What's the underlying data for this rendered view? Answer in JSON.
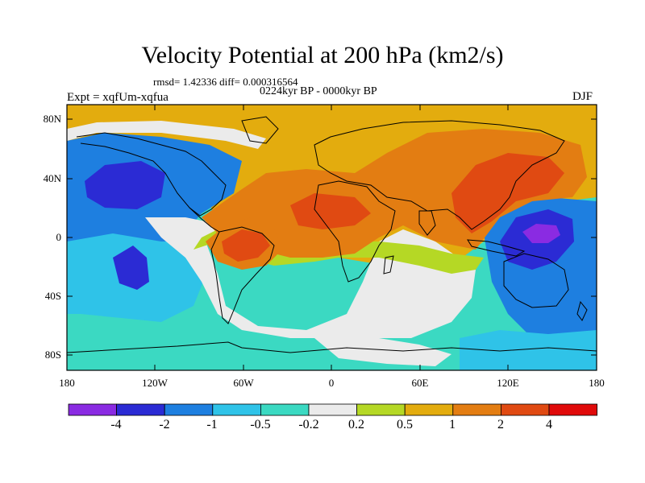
{
  "header": {
    "title": "Velocity Potential at 200 hPa (km2/s)",
    "stats": "rmsd= 1.42336 diff= 0.000316564",
    "period": "0224kyr BP - 0000kyr BP",
    "experiment": "Expt = xqfUm-xqfua",
    "season": "DJF"
  },
  "axes": {
    "lat_labels": [
      "80N",
      "40N",
      "0",
      "40S",
      "80S"
    ],
    "lon_labels": [
      "180",
      "120W",
      "60W",
      "0",
      "60E",
      "120E",
      "180"
    ]
  },
  "colorbar": {
    "labels": [
      "-4",
      "-2",
      "-1",
      "-0.5",
      "-0.2",
      "0.2",
      "0.5",
      "1",
      "2",
      "4"
    ],
    "colors": [
      "#8a2be2",
      "#2b2bd4",
      "#1e7fe0",
      "#2fc3e8",
      "#3bd9c2",
      "#ebebeb",
      "#b5d825",
      "#e3ac0e",
      "#e37d12",
      "#e04a12",
      "#e00a0a"
    ]
  },
  "map_colors": {
    "blue_dark": "#2b2bd4",
    "blue": "#1e7fe0",
    "cyan": "#2fc3e8",
    "teal": "#3bd9c2",
    "neutral": "#ebebeb",
    "yellow_green": "#b5d825",
    "gold": "#e3ac0e",
    "orange": "#e37d12",
    "red_orange": "#e04a12",
    "purple": "#8a2be2"
  }
}
